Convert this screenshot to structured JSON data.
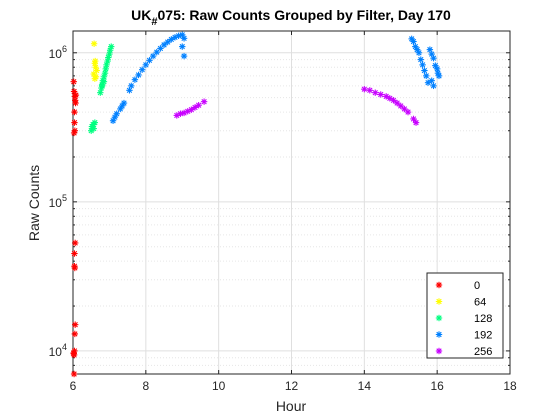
{
  "chart_data": {
    "type": "scatter",
    "title_prefix": "UK",
    "title_subscript": "#",
    "title_suffix": "075: Raw Counts Grouped by Filter, Day 170",
    "xlabel": "Hour",
    "ylabel": "Raw  Counts",
    "xlim": [
      6,
      18
    ],
    "ylim": [
      7000,
      1400000
    ],
    "yscale": "log",
    "grid": true,
    "legend_position": "bottom-right",
    "x_ticks": [
      6,
      8,
      10,
      12,
      14,
      16,
      18
    ],
    "x_tick_labels": [
      "6",
      "8",
      "10",
      "12",
      "14",
      "16",
      "18"
    ],
    "y_ticks": [
      10000,
      100000,
      1000000
    ],
    "y_tick_bases": [
      "10",
      "10",
      "10"
    ],
    "y_tick_exps": [
      "4",
      "5",
      "6"
    ],
    "marker": "*",
    "series": [
      {
        "name": "0",
        "color": "#ff0000",
        "x": [
          6.02,
          6.03,
          6.05,
          6.06,
          6.07,
          6.04,
          6.08,
          6.05,
          6.06,
          6.04,
          6.05,
          6.06,
          6.05,
          6.04,
          6.02,
          6.03,
          6.02,
          6.03,
          6.04,
          6.03,
          6.04
        ],
        "y": [
          640000,
          550000,
          510000,
          480000,
          460000,
          400000,
          520000,
          300000,
          53000,
          45000,
          36000,
          15000,
          13000,
          10000,
          9700,
          9400,
          9600,
          7000,
          37000,
          290000,
          340000
        ]
      },
      {
        "name": "64",
        "color": "#ffff00",
        "x": [
          6.58,
          6.6,
          6.62,
          6.65,
          6.57,
          6.63,
          6.6,
          6.61
        ],
        "y": [
          1150000,
          850000,
          800000,
          760000,
          720000,
          690000,
          670000,
          880000
        ]
      },
      {
        "name": "128",
        "color": "#00ff80",
        "x": [
          6.5,
          6.52,
          6.55,
          6.57,
          6.6,
          6.75,
          6.78,
          6.8,
          6.82,
          6.85,
          6.88,
          6.9,
          6.92,
          6.95,
          6.97,
          7.0,
          7.02,
          7.05,
          6.8,
          6.85
        ],
        "y": [
          300000,
          320000,
          330000,
          310000,
          340000,
          540000,
          580000,
          610000,
          650000,
          690000,
          730000,
          780000,
          830000,
          880000,
          930000,
          980000,
          1040000,
          1100000,
          600000,
          640000
        ]
      },
      {
        "name": "192",
        "color": "#0080ff",
        "x": [
          7.1,
          7.15,
          7.2,
          7.3,
          7.35,
          7.4,
          7.55,
          7.6,
          7.7,
          7.8,
          7.9,
          8.0,
          8.1,
          8.2,
          8.3,
          8.4,
          8.5,
          8.6,
          8.7,
          8.8,
          8.9,
          9.0,
          9.05,
          9.0,
          9.05,
          15.3,
          15.35,
          15.4,
          15.45,
          15.5,
          15.55,
          15.6,
          15.65,
          15.7,
          15.75,
          15.8,
          15.85,
          15.9,
          15.95,
          16.0,
          16.02,
          16.05,
          15.85,
          15.9
        ],
        "y": [
          350000,
          370000,
          390000,
          420000,
          440000,
          460000,
          560000,
          600000,
          660000,
          710000,
          770000,
          830000,
          890000,
          950000,
          1010000,
          1070000,
          1130000,
          1180000,
          1230000,
          1270000,
          1300000,
          1320000,
          1250000,
          1100000,
          950000,
          1240000,
          1190000,
          1100000,
          1050000,
          1000000,
          900000,
          830000,
          760000,
          700000,
          630000,
          1050000,
          980000,
          920000,
          820000,
          780000,
          730000,
          700000,
          650000,
          600000
        ]
      },
      {
        "name": "256",
        "color": "#c800ff",
        "x": [
          8.85,
          8.95,
          9.05,
          9.15,
          9.25,
          9.35,
          9.45,
          9.6,
          14.0,
          14.15,
          14.3,
          14.45,
          14.6,
          14.7,
          14.8,
          14.9,
          15.0,
          15.1,
          15.2,
          15.35,
          15.42
        ],
        "y": [
          380000,
          390000,
          395000,
          405000,
          415000,
          430000,
          445000,
          470000,
          570000,
          560000,
          540000,
          525000,
          510000,
          495000,
          480000,
          460000,
          440000,
          420000,
          400000,
          360000,
          340000
        ]
      }
    ]
  }
}
